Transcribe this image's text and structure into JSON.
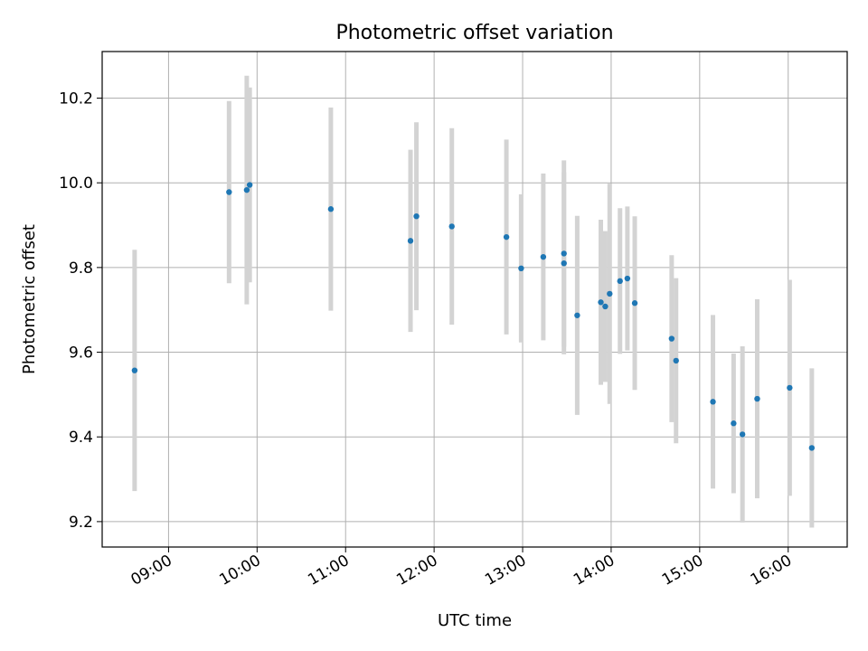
{
  "chart_data": {
    "type": "scatter",
    "title": "Photometric offset variation",
    "xlabel": "UTC time",
    "ylabel": "Photometric offset",
    "x_axis_kind": "time",
    "xlim": [
      "08:15",
      "16:40"
    ],
    "ylim": [
      9.14,
      10.31
    ],
    "x_ticks": [
      "09:00",
      "10:00",
      "11:00",
      "12:00",
      "13:00",
      "14:00",
      "15:00",
      "16:00"
    ],
    "y_ticks": [
      "9.2",
      "9.4",
      "9.6",
      "9.8",
      "10.0",
      "10.2"
    ],
    "grid": true,
    "marker_color": "#1f77b4",
    "errorbar_color": "#d3d3d3",
    "series": [
      {
        "points": [
          {
            "x": "08:37",
            "y": 9.557,
            "yerr": 0.285
          },
          {
            "x": "09:41",
            "y": 9.978,
            "yerr": 0.215
          },
          {
            "x": "09:53",
            "y": 9.983,
            "yerr": 0.27
          },
          {
            "x": "09:55",
            "y": 9.995,
            "yerr": 0.23
          },
          {
            "x": "10:50",
            "y": 9.938,
            "yerr": 0.24
          },
          {
            "x": "11:44",
            "y": 9.863,
            "yerr": 0.215
          },
          {
            "x": "11:48",
            "y": 9.921,
            "yerr": 0.222
          },
          {
            "x": "12:12",
            "y": 9.897,
            "yerr": 0.232
          },
          {
            "x": "12:49",
            "y": 9.872,
            "yerr": 0.23
          },
          {
            "x": "12:59",
            "y": 9.798,
            "yerr": 0.175
          },
          {
            "x": "13:14",
            "y": 9.825,
            "yerr": 0.197
          },
          {
            "x": "13:28",
            "y": 9.833,
            "yerr": 0.22
          },
          {
            "x": "13:28",
            "y": 9.81,
            "yerr": 0.215
          },
          {
            "x": "13:37",
            "y": 9.687,
            "yerr": 0.235
          },
          {
            "x": "13:53",
            "y": 9.718,
            "yerr": 0.195
          },
          {
            "x": "13:56",
            "y": 9.708,
            "yerr": 0.178
          },
          {
            "x": "13:59",
            "y": 9.738,
            "yerr": 0.26
          },
          {
            "x": "14:06",
            "y": 9.768,
            "yerr": 0.172
          },
          {
            "x": "14:11",
            "y": 9.774,
            "yerr": 0.17
          },
          {
            "x": "14:16",
            "y": 9.716,
            "yerr": 0.205
          },
          {
            "x": "14:41",
            "y": 9.632,
            "yerr": 0.197
          },
          {
            "x": "14:44",
            "y": 9.58,
            "yerr": 0.195
          },
          {
            "x": "15:09",
            "y": 9.483,
            "yerr": 0.205
          },
          {
            "x": "15:23",
            "y": 9.432,
            "yerr": 0.165
          },
          {
            "x": "15:29",
            "y": 9.406,
            "yerr": 0.208
          },
          {
            "x": "15:39",
            "y": 9.49,
            "yerr": 0.235
          },
          {
            "x": "16:01",
            "y": 9.516,
            "yerr": 0.255
          },
          {
            "x": "16:16",
            "y": 9.374,
            "yerr": 0.188
          }
        ]
      }
    ]
  }
}
